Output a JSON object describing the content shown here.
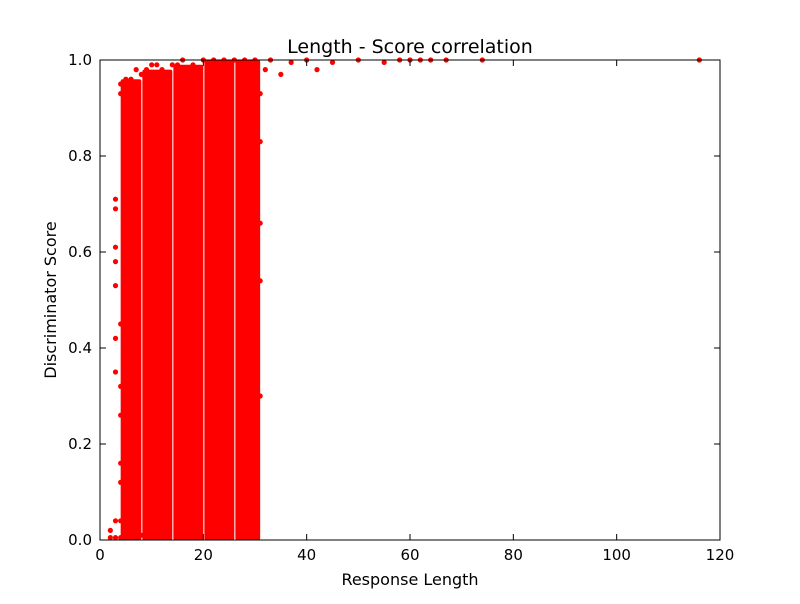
{
  "chart_data": {
    "type": "scatter",
    "title": "Length - Score correlation",
    "xlabel": "Response Length",
    "ylabel": "Discriminator Score",
    "xlim": [
      0,
      120
    ],
    "ylim": [
      0.0,
      1.0
    ],
    "xticks": [
      0,
      20,
      40,
      60,
      80,
      100,
      120
    ],
    "yticks": [
      0.0,
      0.2,
      0.4,
      0.6,
      0.8,
      1.0
    ],
    "xtick_labels": [
      "0",
      "20",
      "40",
      "60",
      "80",
      "100",
      "120"
    ],
    "ytick_labels": [
      "0.0",
      "0.2",
      "0.4",
      "0.6",
      "0.8",
      "1.0"
    ],
    "marker_color": "#ff0000",
    "grid": false,
    "series": [
      {
        "x": [
          2,
          2,
          3,
          3,
          3,
          3,
          3,
          3,
          3,
          3,
          3,
          4,
          4,
          4,
          4,
          4,
          4,
          4,
          4,
          4,
          5,
          5,
          5,
          5,
          5,
          6,
          6,
          6,
          7,
          7,
          8,
          8,
          9,
          10,
          11,
          12,
          14,
          15,
          16,
          18,
          20,
          22,
          24,
          26,
          28,
          30,
          31,
          31,
          31,
          31,
          31,
          32,
          33,
          35,
          37,
          40,
          42,
          45,
          50,
          55,
          58,
          60,
          62,
          64,
          67,
          74,
          116
        ],
        "y": [
          0.02,
          0.005,
          0.71,
          0.69,
          0.61,
          0.58,
          0.53,
          0.42,
          0.35,
          0.04,
          0.005,
          0.95,
          0.93,
          0.45,
          0.32,
          0.26,
          0.16,
          0.12,
          0.04,
          0.005,
          0.96,
          0.44,
          0.23,
          0.09,
          0.005,
          0.96,
          0.24,
          0.02,
          0.98,
          0.01,
          0.97,
          0.01,
          0.98,
          0.99,
          0.99,
          0.98,
          0.99,
          0.99,
          1.0,
          0.99,
          1.0,
          1.0,
          1.0,
          1.0,
          1.0,
          1.0,
          0.93,
          0.83,
          0.66,
          0.54,
          0.3,
          0.98,
          1.0,
          0.97,
          0.995,
          1.0,
          0.98,
          0.995,
          1.0,
          0.995,
          1.0,
          1.0,
          1.0,
          1.0,
          1.0,
          1.0,
          1.0
        ]
      }
    ],
    "dense_columns": [
      {
        "x0": 4,
        "x1": 8,
        "ymin": 0.0,
        "ymax": 0.96
      },
      {
        "x0": 8.2,
        "x1": 14,
        "ymin": 0.0,
        "ymax": 0.98
      },
      {
        "x0": 14.2,
        "x1": 20,
        "ymin": 0.0,
        "ymax": 0.99
      },
      {
        "x0": 20.2,
        "x1": 26,
        "ymin": 0.0,
        "ymax": 1.0
      },
      {
        "x0": 26.2,
        "x1": 31,
        "ymin": 0.0,
        "ymax": 1.0
      }
    ]
  }
}
